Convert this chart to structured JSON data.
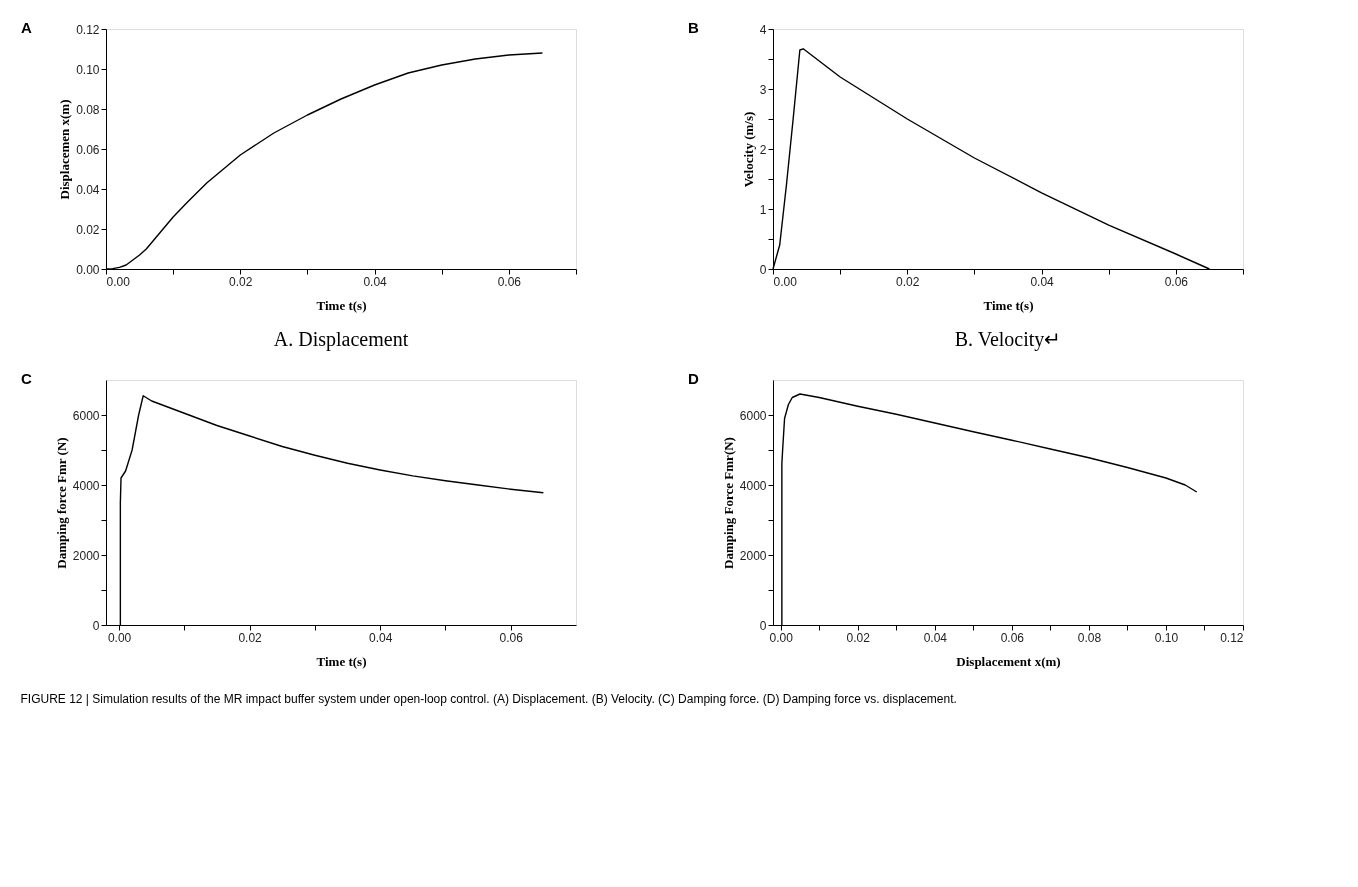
{
  "chart_data": [
    {
      "type": "line",
      "title": "A",
      "subtitle": "A. Displacement",
      "xlabel": "Time t(s)",
      "ylabel": "Displacemen x(m)",
      "xlim": [
        0,
        0.07
      ],
      "ylim": [
        0,
        0.12
      ],
      "xticks": [
        {
          "value": 0,
          "label": "0.00"
        },
        {
          "value": 0.01,
          "label": null
        },
        {
          "value": 0.02,
          "label": "0.02"
        },
        {
          "value": 0.03,
          "label": null
        },
        {
          "value": 0.04,
          "label": "0.04"
        },
        {
          "value": 0.05,
          "label": null
        },
        {
          "value": 0.06,
          "label": "0.06"
        },
        {
          "value": 0.07,
          "label": null
        }
      ],
      "yticks": [
        {
          "value": 0,
          "label": "0.00"
        },
        {
          "value": 0.02,
          "label": "0.02"
        },
        {
          "value": 0.04,
          "label": "0.04"
        },
        {
          "value": 0.06,
          "label": "0.06"
        },
        {
          "value": 0.08,
          "label": "0.08"
        },
        {
          "value": 0.1,
          "label": "0.10"
        },
        {
          "value": 0.12,
          "label": "0.12"
        }
      ],
      "grid": false,
      "legend": false,
      "marker": "none",
      "line_style": "solid",
      "x": [
        0,
        0.001,
        0.002,
        0.003,
        0.004,
        0.005,
        0.006,
        0.008,
        0.01,
        0.012,
        0.015,
        0.02,
        0.025,
        0.03,
        0.035,
        0.04,
        0.045,
        0.05,
        0.055,
        0.06,
        0.065
      ],
      "series": [
        {
          "color": "#000000",
          "values": [
            0,
            0.0002,
            0.0008,
            0.002,
            0.0045,
            0.007,
            0.01,
            0.018,
            0.026,
            0.033,
            0.043,
            0.057,
            0.068,
            0.077,
            0.085,
            0.092,
            0.098,
            0.102,
            0.105,
            0.107,
            0.108
          ]
        }
      ]
    },
    {
      "type": "line",
      "title": "B",
      "subtitle": "B. Velocity↵",
      "xlabel": "Time t(s)",
      "ylabel": "Velocity (m/s)",
      "xlim": [
        0,
        0.07
      ],
      "ylim": [
        0,
        4
      ],
      "xticks": [
        {
          "value": 0,
          "label": "0.00"
        },
        {
          "value": 0.01,
          "label": null
        },
        {
          "value": 0.02,
          "label": "0.02"
        },
        {
          "value": 0.03,
          "label": null
        },
        {
          "value": 0.04,
          "label": "0.04"
        },
        {
          "value": 0.05,
          "label": null
        },
        {
          "value": 0.06,
          "label": "0.06"
        },
        {
          "value": 0.07,
          "label": null
        }
      ],
      "yticks": [
        0,
        {
          "value": 0.5,
          "label": null
        },
        1,
        {
          "value": 1.5,
          "label": null
        },
        2,
        {
          "value": 2.5,
          "label": null
        },
        3,
        {
          "value": 3.5,
          "label": null
        },
        4
      ],
      "grid": false,
      "legend": false,
      "marker": "none",
      "line_style": "solid",
      "x": [
        0,
        0.001,
        0.002,
        0.003,
        0.004,
        0.0045,
        0.01,
        0.02,
        0.03,
        0.04,
        0.05,
        0.06,
        0.065
      ],
      "series": [
        {
          "color": "#000000",
          "values": [
            0,
            0.4,
            1.4,
            2.5,
            3.65,
            3.67,
            3.2,
            2.5,
            1.85,
            1.27,
            0.73,
            0.25,
            0
          ]
        }
      ]
    },
    {
      "type": "line",
      "title": "C",
      "xlabel": "Time t(s)",
      "ylabel": "Damping force Fmr (N)",
      "xlim": [
        -0.002,
        0.07
      ],
      "ylim": [
        0,
        7000
      ],
      "xticks": [
        {
          "value": 0,
          "label": "0.00"
        },
        {
          "value": 0.01,
          "label": null
        },
        {
          "value": 0.02,
          "label": "0.02"
        },
        {
          "value": 0.03,
          "label": null
        },
        {
          "value": 0.04,
          "label": "0.04"
        },
        {
          "value": 0.05,
          "label": null
        },
        {
          "value": 0.06,
          "label": "0.06"
        }
      ],
      "yticks": [
        0,
        {
          "value": 1000,
          "label": null
        },
        2000,
        {
          "value": 3000,
          "label": null
        },
        4000,
        {
          "value": 5000,
          "label": null
        },
        6000
      ],
      "grid": false,
      "legend": false,
      "marker": "none",
      "line_style": "solid",
      "x": [
        0.0002,
        0.0002,
        0.0003,
        0.001,
        0.002,
        0.003,
        0.0037,
        0.005,
        0.01,
        0.015,
        0.02,
        0.025,
        0.03,
        0.035,
        0.04,
        0.045,
        0.05,
        0.055,
        0.06,
        0.065
      ],
      "series": [
        {
          "color": "#000000",
          "values": [
            0,
            3500,
            4200,
            4400,
            5000,
            6000,
            6550,
            6400,
            6050,
            5700,
            5400,
            5100,
            4850,
            4620,
            4430,
            4260,
            4120,
            4000,
            3880,
            3780
          ]
        }
      ]
    },
    {
      "type": "line",
      "title": "D",
      "xlabel": "Displacement x(m)",
      "ylabel": "Damping Force Fmr(N)",
      "xlim": [
        -0.002,
        0.12
      ],
      "ylim": [
        0,
        7000
      ],
      "xticks": [
        {
          "value": 0,
          "label": "0.00"
        },
        {
          "value": 0.01,
          "label": null
        },
        {
          "value": 0.02,
          "label": "0.02"
        },
        {
          "value": 0.03,
          "label": null
        },
        {
          "value": 0.04,
          "label": "0.04"
        },
        {
          "value": 0.05,
          "label": null
        },
        {
          "value": 0.06,
          "label": "0.06"
        },
        {
          "value": 0.07,
          "label": null
        },
        {
          "value": 0.08,
          "label": "0.08"
        },
        {
          "value": 0.09,
          "label": null
        },
        {
          "value": 0.1,
          "label": "0.10"
        },
        {
          "value": 0.11,
          "label": null
        },
        {
          "value": 0.12,
          "label": "0.12"
        }
      ],
      "yticks": [
        0,
        {
          "value": 1000,
          "label": null
        },
        2000,
        {
          "value": 3000,
          "label": null
        },
        4000,
        {
          "value": 5000,
          "label": null
        },
        6000
      ],
      "grid": false,
      "legend": false,
      "marker": "none",
      "line_style": "solid",
      "x": [
        0.0003,
        0.0003,
        0.0005,
        0.001,
        0.002,
        0.003,
        0.005,
        0.01,
        0.02,
        0.03,
        0.04,
        0.05,
        0.06,
        0.07,
        0.08,
        0.09,
        0.1,
        0.105,
        0.108
      ],
      "series": [
        {
          "color": "#000000",
          "values": [
            0,
            4600,
            5000,
            5900,
            6300,
            6500,
            6600,
            6500,
            6250,
            6020,
            5770,
            5520,
            5280,
            5030,
            4780,
            4500,
            4200,
            4000,
            3800
          ]
        }
      ],
      "annotations": [
        "FIGURE 12 | Simulation results of the MR impact buffer system under open-loop control. (A) Displacement. (B) Velocity. (C) Damping force. (D) Damping force vs. displacement."
      ]
    }
  ]
}
